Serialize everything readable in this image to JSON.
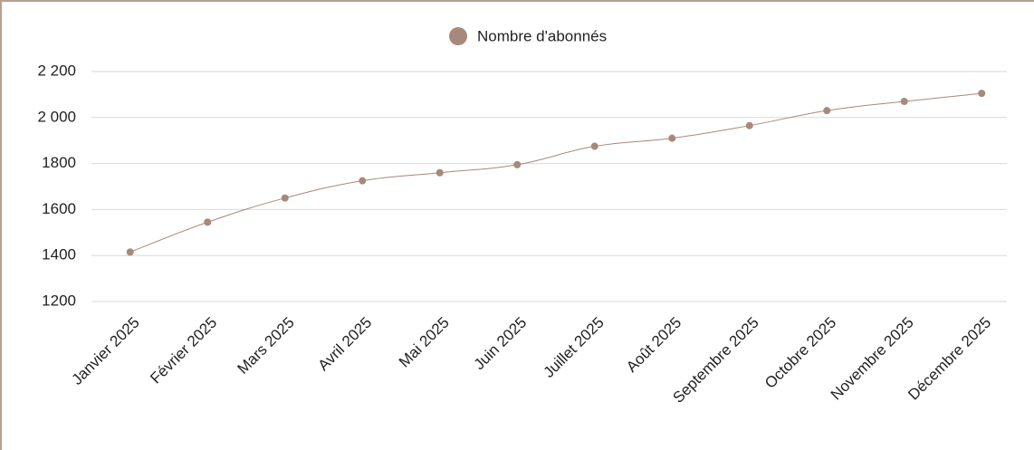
{
  "chart_data": {
    "type": "line",
    "categories": [
      "Janvier 2025",
      "Février 2025",
      "Mars 2025",
      "Avril 2025",
      "Mai 2025",
      "Juin 2025",
      "Juillet 2025",
      "Août 2025",
      "Septembre 2025",
      "Octobre 2025",
      "Novembre 2025",
      "Décembre 2025"
    ],
    "series": [
      {
        "name": "Nombre d'abonnés",
        "color": "#a8887a",
        "values": [
          1415,
          1545,
          1650,
          1725,
          1760,
          1795,
          1875,
          1910,
          1965,
          2030,
          2070,
          2105
        ]
      }
    ],
    "ylim": [
      1200,
      2200
    ],
    "yticks": [
      1200,
      1400,
      1600,
      1800,
      {
        "value": 2000,
        "label": "2 000"
      },
      {
        "value": 2200,
        "label": "2 200"
      }
    ],
    "grid": true,
    "legend": "top"
  }
}
